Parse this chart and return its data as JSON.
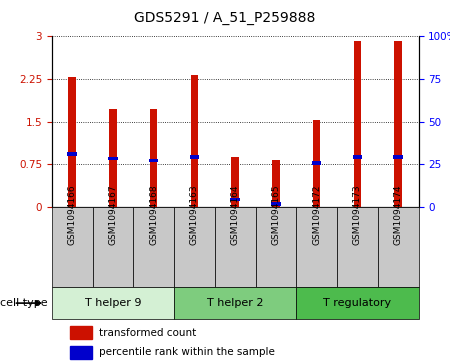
{
  "title": "GDS5291 / A_51_P259888",
  "samples": [
    "GSM1094166",
    "GSM1094167",
    "GSM1094168",
    "GSM1094163",
    "GSM1094164",
    "GSM1094165",
    "GSM1094172",
    "GSM1094173",
    "GSM1094174"
  ],
  "red_values": [
    2.28,
    1.73,
    1.72,
    2.32,
    0.88,
    0.83,
    1.52,
    2.92,
    2.91
  ],
  "blue_values": [
    0.93,
    0.85,
    0.82,
    0.88,
    0.13,
    0.05,
    0.77,
    0.88,
    0.88
  ],
  "groups": [
    {
      "label": "T helper 9",
      "start": 0,
      "end": 3,
      "color": "#d4f0d4"
    },
    {
      "label": "T helper 2",
      "start": 3,
      "end": 6,
      "color": "#7ecc7e"
    },
    {
      "label": "T regulatory",
      "start": 6,
      "end": 9,
      "color": "#4dbb4d"
    }
  ],
  "ylim_left": [
    0,
    3
  ],
  "ylim_right": [
    0,
    100
  ],
  "yticks_left": [
    0,
    0.75,
    1.5,
    2.25,
    3
  ],
  "yticks_right": [
    0,
    25,
    50,
    75,
    100
  ],
  "ytick_labels_left": [
    "0",
    "0.75",
    "1.5",
    "2.25",
    "3"
  ],
  "ytick_labels_right": [
    "0",
    "25",
    "50",
    "75",
    "100%"
  ],
  "bar_width": 0.18,
  "red_color": "#cc1100",
  "blue_color": "#0000cc",
  "cell_type_label": "cell type",
  "legend_red": "transformed count",
  "legend_blue": "percentile rank within the sample",
  "label_area_bg": "#c8c8c8"
}
